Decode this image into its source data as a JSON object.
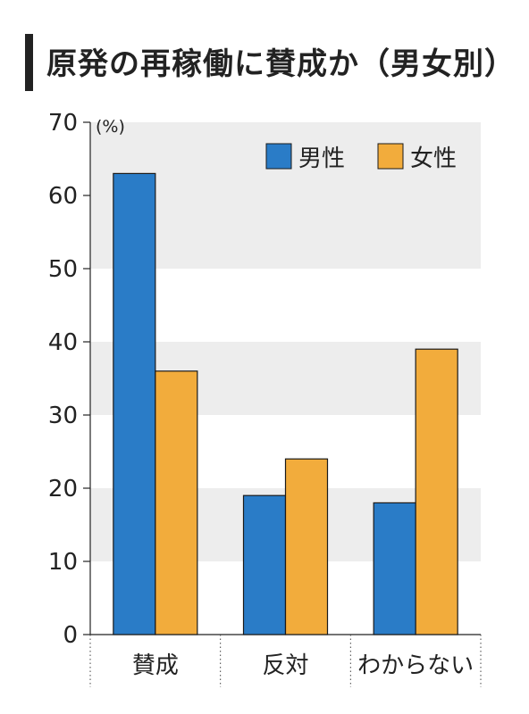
{
  "title": "原発の再稼働に賛成か（男女別）",
  "chart_data": {
    "type": "bar",
    "title": "原発の再稼働に賛成か（男女別）",
    "ylabel": "(%)",
    "ylim": [
      0,
      70
    ],
    "yticks": [
      0,
      10,
      20,
      30,
      40,
      50,
      60,
      70
    ],
    "categories": [
      "賛成",
      "反対",
      "わからない"
    ],
    "series": [
      {
        "name": "男性",
        "values": [
          63,
          19,
          18
        ],
        "color": "#2a7cc7"
      },
      {
        "name": "女性",
        "values": [
          36,
          24,
          39
        ],
        "color": "#f2ac3c"
      }
    ],
    "legend_position": "top-right",
    "band_color": "#ededed"
  }
}
